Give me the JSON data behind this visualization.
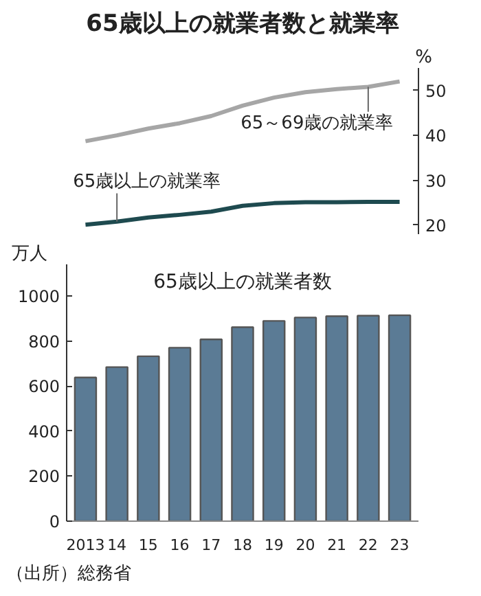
{
  "chart_data": [
    {
      "type": "line",
      "title": "65歳以上の就業者数と就業率",
      "ylabel": "%",
      "categories": [
        "2013",
        "14",
        "15",
        "16",
        "17",
        "18",
        "19",
        "20",
        "21",
        "22",
        "23"
      ],
      "tick_labels": "y",
      "ylim": [
        18,
        55
      ],
      "yticks": [
        20,
        30,
        40,
        50
      ],
      "grid": false,
      "marker": "none",
      "line_style": "solid",
      "series": [
        {
          "name": "65～69歳の就業率",
          "color": "#a6a6a6",
          "values": [
            38.7,
            40.0,
            41.5,
            42.7,
            44.3,
            46.6,
            48.4,
            49.6,
            50.3,
            50.8,
            52.0
          ]
        },
        {
          "name": "65歳以上の就業率",
          "color": "#1e4a4f",
          "values": [
            20.1,
            20.8,
            21.7,
            22.3,
            23.0,
            24.3,
            24.9,
            25.1,
            25.1,
            25.2,
            25.2
          ]
        }
      ]
    },
    {
      "type": "bar",
      "ylabel": "万人",
      "categories": [
        "2013",
        "14",
        "15",
        "16",
        "17",
        "18",
        "19",
        "20",
        "21",
        "22",
        "23"
      ],
      "ylim": [
        0,
        1140
      ],
      "yticks": [
        0,
        200,
        400,
        600,
        800,
        1000
      ],
      "grid": false,
      "annotations": [
        "（出所）総務省"
      ],
      "series": [
        {
          "name": "65歳以上の就業者数",
          "color": "#5b7b95",
          "values": [
            638,
            684,
            732,
            770,
            807,
            861,
            889,
            904,
            910,
            912,
            914
          ]
        }
      ]
    }
  ]
}
